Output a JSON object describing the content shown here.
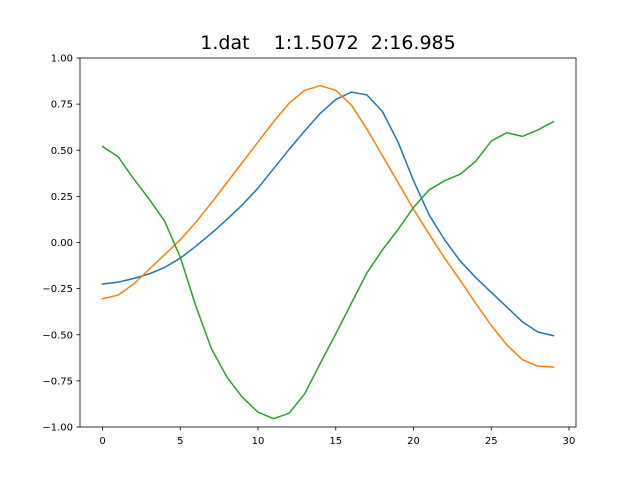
{
  "chart_data": {
    "type": "line",
    "title": "1.dat    1:1.5072  2:16.985",
    "xlabel": "",
    "ylabel": "",
    "xlim": [
      -1.45,
      30.45
    ],
    "ylim": [
      -1.0,
      1.0
    ],
    "xticks": [
      0,
      5,
      10,
      15,
      20,
      25,
      30
    ],
    "yticks": [
      -1.0,
      -0.75,
      -0.5,
      -0.25,
      0.0,
      0.25,
      0.5,
      0.75,
      1.0
    ],
    "xtick_labels": [
      "0",
      "5",
      "10",
      "15",
      "20",
      "25",
      "30"
    ],
    "ytick_labels": [
      "−1.00",
      "−0.75",
      "−0.50",
      "−0.25",
      "0.00",
      "0.25",
      "0.50",
      "0.75",
      "1.00"
    ],
    "grid": false,
    "x": [
      0,
      1,
      2,
      3,
      4,
      5,
      6,
      7,
      8,
      9,
      10,
      11,
      12,
      13,
      14,
      15,
      16,
      17,
      18,
      19,
      20,
      21,
      22,
      23,
      24,
      25,
      26,
      27,
      28,
      29
    ],
    "series": [
      {
        "color": "#1f77b4",
        "values": [
          -0.225,
          -0.215,
          -0.195,
          -0.17,
          -0.135,
          -0.085,
          -0.02,
          0.05,
          0.125,
          0.205,
          0.295,
          0.4,
          0.505,
          0.605,
          0.7,
          0.775,
          0.815,
          0.8,
          0.71,
          0.545,
          0.335,
          0.15,
          0.015,
          -0.1,
          -0.19,
          -0.27,
          -0.35,
          -0.43,
          -0.485,
          -0.505
        ]
      },
      {
        "color": "#ff7f0e",
        "values": [
          -0.305,
          -0.285,
          -0.225,
          -0.145,
          -0.065,
          0.015,
          0.11,
          0.215,
          0.325,
          0.435,
          0.545,
          0.655,
          0.755,
          0.825,
          0.85,
          0.825,
          0.745,
          0.615,
          0.47,
          0.325,
          0.18,
          0.045,
          -0.085,
          -0.205,
          -0.33,
          -0.45,
          -0.555,
          -0.635,
          -0.67,
          -0.675
        ]
      },
      {
        "color": "#2ca02c",
        "values": [
          0.52,
          0.465,
          0.345,
          0.235,
          0.115,
          -0.08,
          -0.345,
          -0.575,
          -0.73,
          -0.84,
          -0.92,
          -0.955,
          -0.925,
          -0.82,
          -0.655,
          -0.495,
          -0.33,
          -0.165,
          -0.04,
          0.07,
          0.19,
          0.285,
          0.335,
          0.37,
          0.44,
          0.55,
          0.595,
          0.575,
          0.61,
          0.655
        ]
      }
    ]
  }
}
